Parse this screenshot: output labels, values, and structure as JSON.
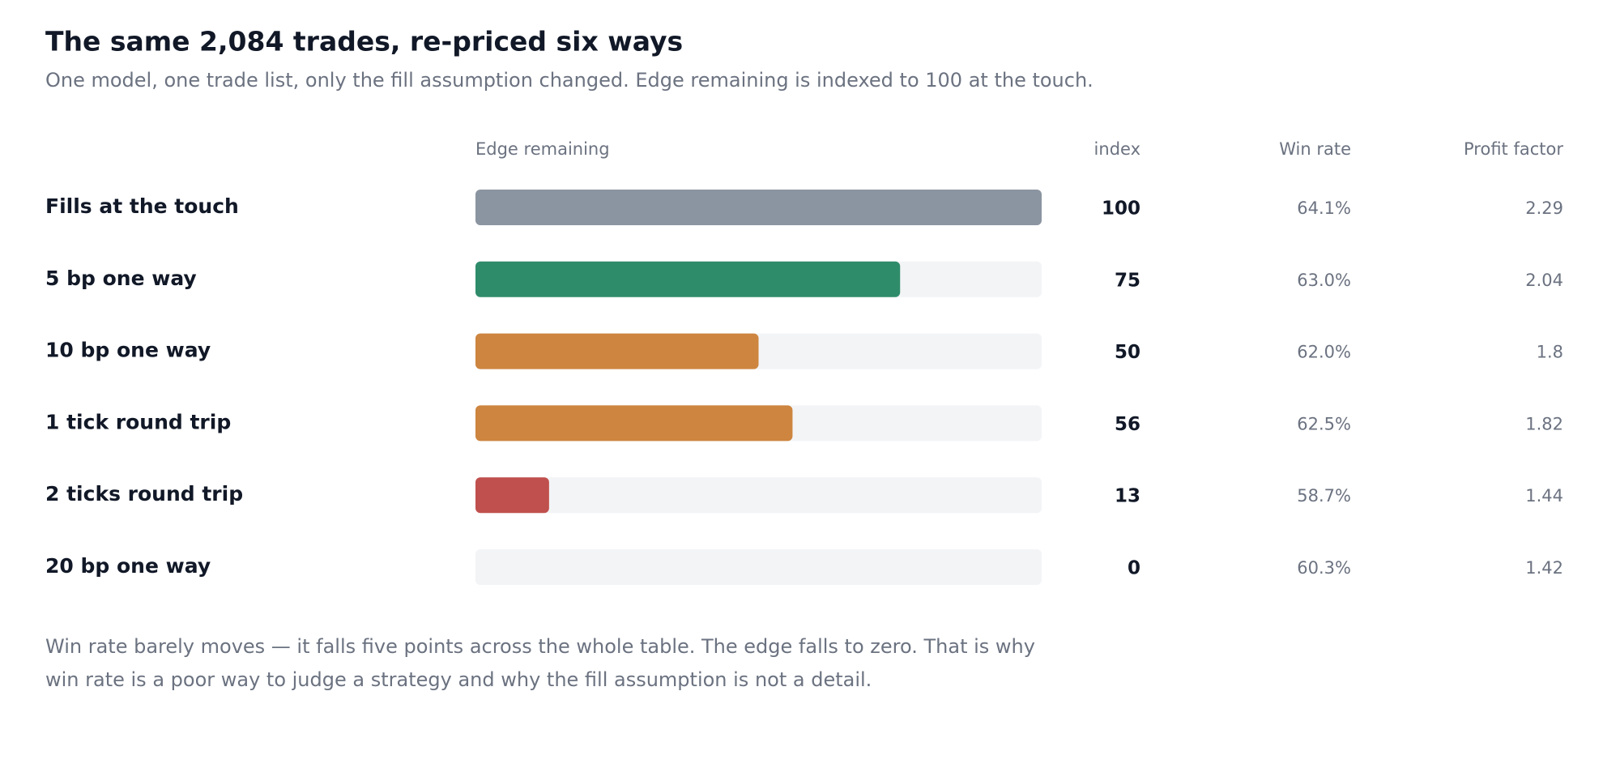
{
  "chart_data": {
    "type": "bar",
    "title": "The same 2,084 trades, re-priced six ways",
    "subtitle": "One model, one trade list, only the fill assumption changed. Edge remaining is indexed to 100 at the touch.",
    "value_header": "Edge remaining",
    "index_header": "index",
    "categories": [
      "Fills at the touch",
      "5 bp one way",
      "10 bp one way",
      "1 tick round trip",
      "2 ticks round trip",
      "20 bp one way"
    ],
    "values": [
      100,
      75,
      50,
      56,
      13,
      0
    ],
    "colors": [
      "#8b95a1",
      "#2f8c6b",
      "#cd853f",
      "#cd853f",
      "#c0504d",
      "#c0504d"
    ],
    "xlim": [
      0,
      100
    ],
    "columns": [
      {
        "header": "Win rate",
        "values": [
          64.1,
          63.0,
          62.0,
          62.5,
          58.7,
          60.3
        ],
        "value_labels": [
          "64.1%",
          "63.0%",
          "62.0%",
          "62.5%",
          "58.7%",
          "60.3%"
        ]
      },
      {
        "header": "Profit factor",
        "values": [
          2.29,
          2.04,
          1.8,
          1.82,
          1.44,
          1.42
        ]
      }
    ],
    "note": "Win rate barely moves — it falls five points across the whole table. The edge falls to zero. That is why win rate is a poor way to judge a strategy and why the fill assumption is not a detail."
  }
}
